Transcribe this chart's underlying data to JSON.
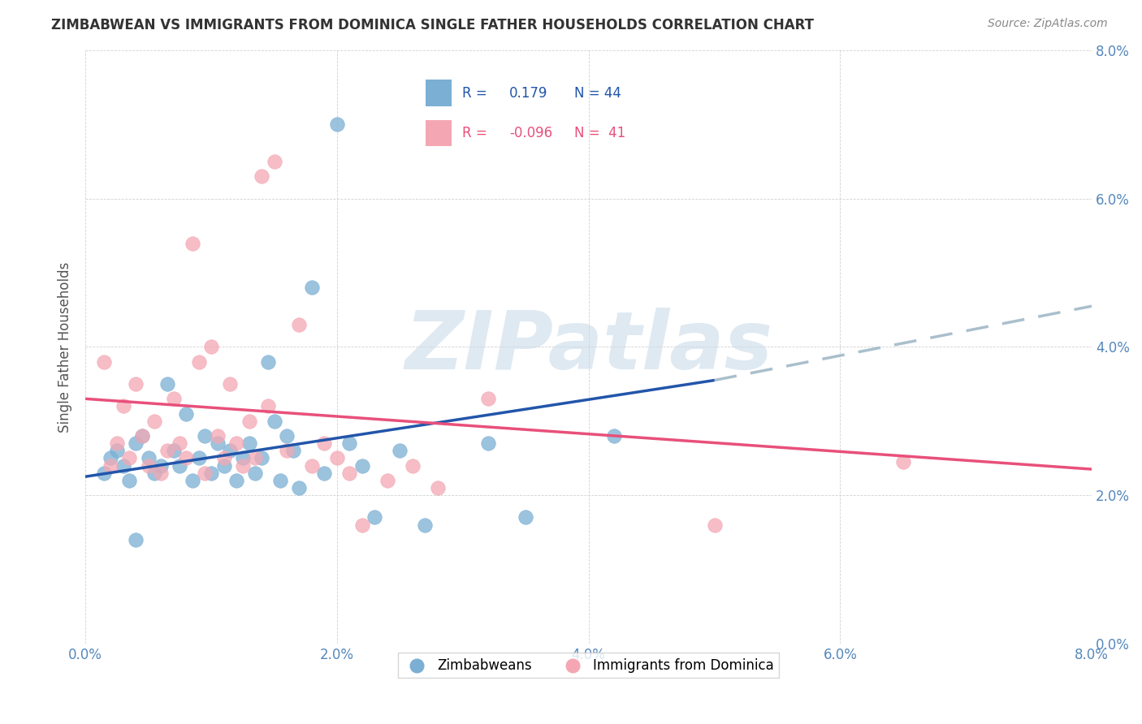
{
  "title": "ZIMBABWEAN VS IMMIGRANTS FROM DOMINICA SINGLE FATHER HOUSEHOLDS CORRELATION CHART",
  "source": "Source: ZipAtlas.com",
  "ylabel": "Single Father Households",
  "xlim": [
    0.0,
    8.0
  ],
  "ylim": [
    0.0,
    8.0
  ],
  "ytick_vals": [
    0,
    2,
    4,
    6,
    8
  ],
  "xtick_vals": [
    0,
    2,
    4,
    6,
    8
  ],
  "legend_blue_text": "R =  0.179  N = 44",
  "legend_pink_text": "R = -0.096  N =  41",
  "label_blue": "Zimbabweans",
  "label_pink": "Immigrants from Dominica",
  "blue_color": "#7BAFD4",
  "pink_color": "#F4A7B3",
  "blue_line_color": "#2255AA",
  "pink_line_color": "#E8507A",
  "dashed_line_color": "#AABFCC",
  "watermark_text": "ZIPatlas",
  "watermark_color": "#C5D8E8",
  "blue_line_x0": 0.0,
  "blue_line_y0": 2.25,
  "blue_line_x1": 5.0,
  "blue_line_y1": 3.55,
  "blue_dash_x0": 5.0,
  "blue_dash_y0": 3.55,
  "blue_dash_x1": 8.0,
  "blue_dash_y1": 4.55,
  "pink_line_x0": 0.0,
  "pink_line_y0": 3.3,
  "pink_line_x1": 8.0,
  "pink_line_y1": 2.35,
  "blue_dots_x": [
    0.15,
    0.2,
    0.25,
    0.3,
    0.35,
    0.4,
    0.45,
    0.5,
    0.55,
    0.6,
    0.65,
    0.7,
    0.75,
    0.8,
    0.85,
    0.9,
    0.95,
    1.0,
    1.05,
    1.1,
    1.15,
    1.2,
    1.25,
    1.3,
    1.35,
    1.4,
    1.45,
    1.5,
    1.55,
    1.6,
    1.65,
    1.7,
    1.8,
    1.9,
    2.0,
    2.1,
    2.2,
    2.3,
    2.5,
    2.7,
    3.2,
    3.5,
    4.2,
    0.4
  ],
  "blue_dots_y": [
    2.3,
    2.5,
    2.6,
    2.4,
    2.2,
    2.7,
    2.8,
    2.5,
    2.3,
    2.4,
    3.5,
    2.6,
    2.4,
    3.1,
    2.2,
    2.5,
    2.8,
    2.3,
    2.7,
    2.4,
    2.6,
    2.2,
    2.5,
    2.7,
    2.3,
    2.5,
    3.8,
    3.0,
    2.2,
    2.8,
    2.6,
    2.1,
    4.8,
    2.3,
    7.0,
    2.7,
    2.4,
    1.7,
    2.6,
    1.6,
    2.7,
    1.7,
    2.8,
    1.4
  ],
  "pink_dots_x": [
    0.15,
    0.2,
    0.25,
    0.3,
    0.35,
    0.4,
    0.45,
    0.5,
    0.55,
    0.6,
    0.65,
    0.7,
    0.75,
    0.8,
    0.85,
    0.9,
    0.95,
    1.0,
    1.05,
    1.1,
    1.15,
    1.2,
    1.25,
    1.3,
    1.35,
    1.4,
    1.45,
    1.5,
    1.6,
    1.7,
    1.8,
    1.9,
    2.0,
    2.1,
    2.2,
    2.4,
    2.6,
    2.8,
    3.2,
    5.0,
    6.5
  ],
  "pink_dots_y": [
    3.8,
    2.4,
    2.7,
    3.2,
    2.5,
    3.5,
    2.8,
    2.4,
    3.0,
    2.3,
    2.6,
    3.3,
    2.7,
    2.5,
    5.4,
    3.8,
    2.3,
    4.0,
    2.8,
    2.5,
    3.5,
    2.7,
    2.4,
    3.0,
    2.5,
    6.3,
    3.2,
    6.5,
    2.6,
    4.3,
    2.4,
    2.7,
    2.5,
    2.3,
    1.6,
    2.2,
    2.4,
    2.1,
    3.3,
    1.6,
    2.45
  ]
}
